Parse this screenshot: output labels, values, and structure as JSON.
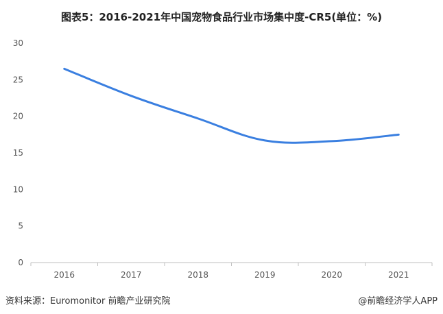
{
  "chart_data": {
    "type": "line",
    "title": "图表5：2016-2021年中国宠物食品行业市场集中度-CR5(单位：%)",
    "categories": [
      "2016",
      "2017",
      "2018",
      "2019",
      "2020",
      "2021"
    ],
    "series": [
      {
        "values": [
          26.5,
          22.8,
          19.7,
          16.7,
          16.6,
          17.5
        ]
      }
    ],
    "ylim": [
      0,
      30
    ],
    "yticks": [
      0,
      5,
      10,
      15,
      20,
      25,
      30
    ],
    "grid": false,
    "colors": {
      "line": "#3a7fe0",
      "axis": "#bfbfbf"
    }
  },
  "footer": {
    "source": "资料来源：Euromonitor 前瞻产业研究院",
    "brand": "@前瞻经济学人APP"
  }
}
